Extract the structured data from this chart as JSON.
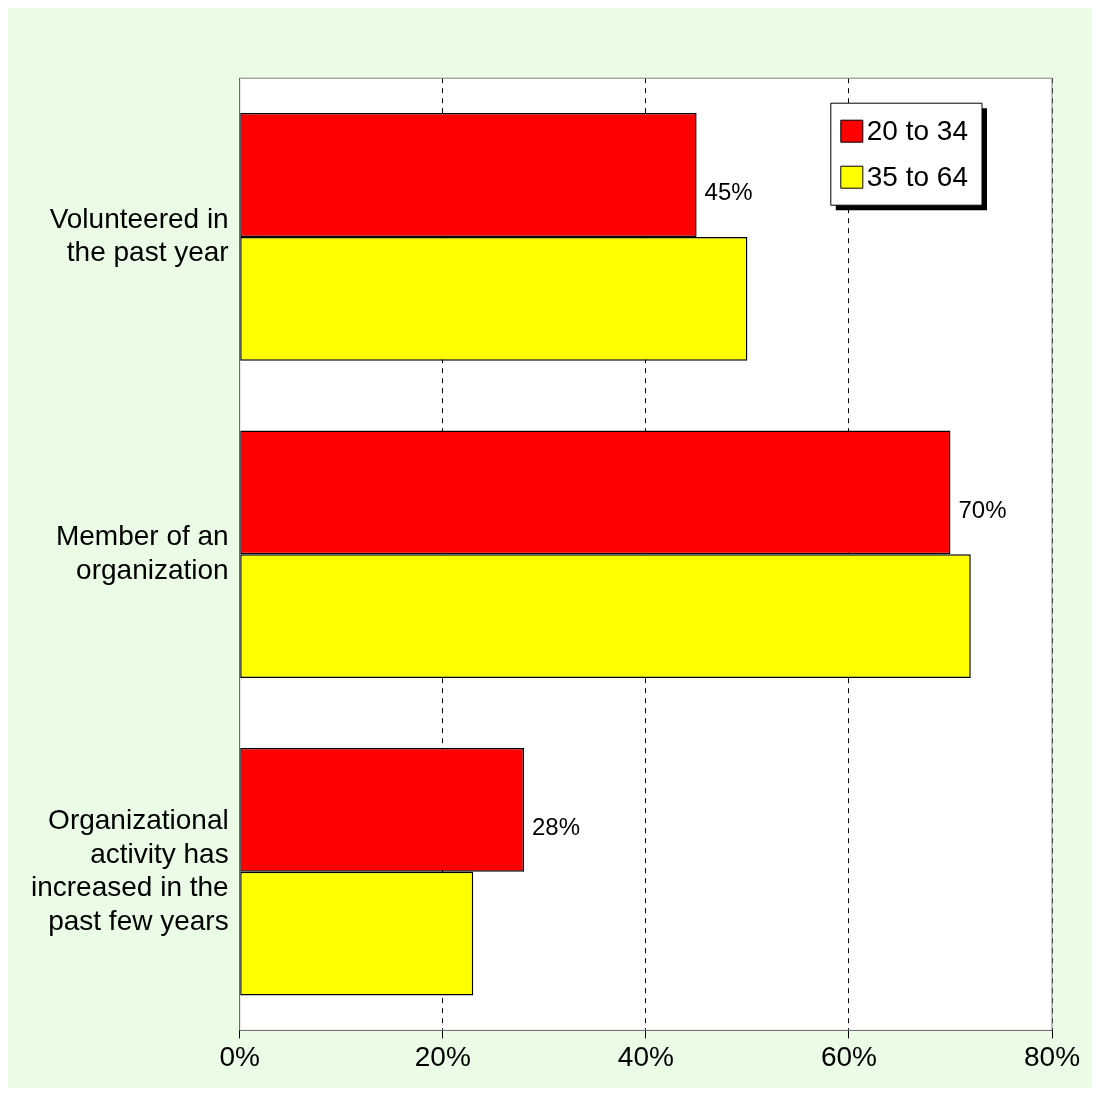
{
  "chart_data": {
    "type": "bar",
    "orientation": "horizontal",
    "categories": [
      "Volunteered in the past year",
      "Member of an organization",
      "Organizational activity has increased in the past few years"
    ],
    "series": [
      {
        "name": "20 to 34",
        "color": "#ff0000",
        "values": [
          45,
          70,
          28
        ],
        "value_labels": [
          "45%",
          "70%",
          "28%"
        ]
      },
      {
        "name": "35 to 64",
        "color": "#ffff00",
        "values": [
          50,
          72,
          23
        ]
      }
    ],
    "xlim": [
      0,
      80
    ],
    "xticks": [
      {
        "value": 0,
        "label": "0%"
      },
      {
        "value": 20,
        "label": "20%"
      },
      {
        "value": 40,
        "label": "40%"
      },
      {
        "value": 60,
        "label": "60%"
      },
      {
        "value": 80,
        "label": "80%"
      }
    ],
    "grid": "x",
    "legend": "top right"
  }
}
